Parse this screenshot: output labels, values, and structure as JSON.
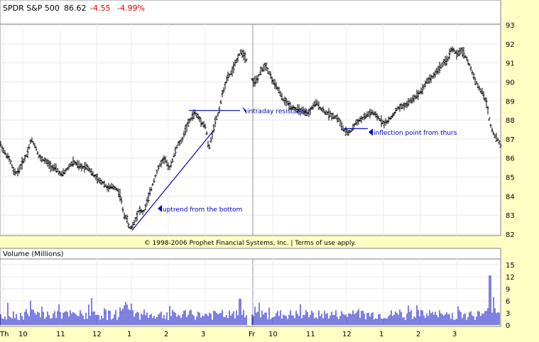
{
  "header": {
    "ticker": "SPDR S&P 500",
    "price": "86.62",
    "change": "-4.55",
    "change_pct": "-4.99%"
  },
  "copyright": "© 1998-2006 Prophet Financial Systems, Inc. | Terms of use apply.",
  "chart_data": [
    {
      "type": "line",
      "title": "SPDR S&P 500",
      "ylim": [
        82,
        93
      ],
      "yticks": [
        82,
        83,
        84,
        85,
        86,
        87,
        88,
        89,
        90,
        91,
        92,
        93
      ],
      "grid": true,
      "colors": {
        "bars": "#000000",
        "annotation": "#0000c0",
        "background": "#ffffff",
        "frame": "#ffffc4"
      },
      "x_tick_labels": [
        "Th",
        "10",
        "11",
        "12",
        "1",
        "2",
        "3",
        "Fr",
        "10",
        "11",
        "12",
        "1",
        "2",
        "3"
      ],
      "session_divider_after_label": "Fr",
      "series": [
        {
          "name": "",
          "style": "ohlc-bars",
          "anchors": [
            [
              0,
              86.8
            ],
            [
              6,
              86.3
            ],
            [
              14,
              85.9
            ],
            [
              20,
              85.2
            ],
            [
              26,
              85.3
            ],
            [
              32,
              85.8
            ],
            [
              38,
              86.2
            ],
            [
              44,
              87.0
            ],
            [
              50,
              86.6
            ],
            [
              56,
              86.0
            ],
            [
              62,
              85.9
            ],
            [
              68,
              85.7
            ],
            [
              74,
              85.5
            ],
            [
              80,
              85.4
            ],
            [
              86,
              85.1
            ],
            [
              92,
              85.3
            ],
            [
              98,
              85.6
            ],
            [
              104,
              85.8
            ],
            [
              110,
              85.6
            ],
            [
              116,
              85.5
            ],
            [
              122,
              85.6
            ],
            [
              128,
              85.3
            ],
            [
              134,
              85.0
            ],
            [
              140,
              84.8
            ],
            [
              146,
              84.7
            ],
            [
              152,
              84.4
            ],
            [
              158,
              84.5
            ],
            [
              164,
              84.4
            ],
            [
              170,
              84.0
            ],
            [
              174,
              83.0
            ],
            [
              178,
              82.9
            ],
            [
              182,
              82.3
            ],
            [
              186,
              82.4
            ],
            [
              190,
              82.7
            ],
            [
              196,
              83.3
            ],
            [
              202,
              83.1
            ],
            [
              208,
              83.8
            ],
            [
              214,
              84.5
            ],
            [
              220,
              85.2
            ],
            [
              226,
              85.7
            ],
            [
              232,
              86.0
            ],
            [
              238,
              85.4
            ],
            [
              244,
              86.0
            ],
            [
              250,
              86.7
            ],
            [
              256,
              86.9
            ],
            [
              262,
              87.6
            ],
            [
              268,
              88.0
            ],
            [
              274,
              88.4
            ],
            [
              280,
              88.1
            ],
            [
              286,
              87.8
            ],
            [
              290,
              87.6
            ],
            [
              294,
              86.4
            ],
            [
              298,
              87.1
            ],
            [
              302,
              87.8
            ],
            [
              308,
              88.4
            ],
            [
              314,
              89.5
            ],
            [
              320,
              90.2
            ],
            [
              326,
              90.5
            ],
            [
              332,
              91.0
            ],
            [
              336,
              91.4
            ],
            [
              340,
              91.6
            ],
            [
              346,
              91.3
            ],
            [
              356,
              90.0
            ],
            [
              362,
              90.1
            ],
            [
              368,
              90.6
            ],
            [
              374,
              90.9
            ],
            [
              380,
              90.4
            ],
            [
              386,
              89.9
            ],
            [
              392,
              89.6
            ],
            [
              398,
              89.1
            ],
            [
              404,
              88.9
            ],
            [
              410,
              88.7
            ],
            [
              416,
              88.6
            ],
            [
              422,
              88.5
            ],
            [
              428,
              88.4
            ],
            [
              434,
              88.3
            ],
            [
              440,
              88.7
            ],
            [
              446,
              88.9
            ],
            [
              452,
              88.6
            ],
            [
              458,
              88.4
            ],
            [
              464,
              88.3
            ],
            [
              470,
              88.2
            ],
            [
              476,
              88.1
            ],
            [
              482,
              87.6
            ],
            [
              488,
              87.3
            ],
            [
              494,
              87.4
            ],
            [
              500,
              87.8
            ],
            [
              506,
              88.0
            ],
            [
              512,
              88.1
            ],
            [
              518,
              88.3
            ],
            [
              524,
              88.4
            ],
            [
              530,
              88.2
            ],
            [
              536,
              88.0
            ],
            [
              542,
              87.8
            ],
            [
              548,
              88.0
            ],
            [
              554,
              88.3
            ],
            [
              560,
              88.6
            ],
            [
              566,
              88.7
            ],
            [
              572,
              88.8
            ],
            [
              578,
              89.0
            ],
            [
              584,
              89.2
            ],
            [
              590,
              89.4
            ],
            [
              596,
              89.7
            ],
            [
              602,
              90.1
            ],
            [
              608,
              90.2
            ],
            [
              614,
              90.5
            ],
            [
              620,
              90.8
            ],
            [
              626,
              91.0
            ],
            [
              632,
              91.3
            ],
            [
              636,
              91.8
            ],
            [
              640,
              91.6
            ],
            [
              644,
              91.4
            ],
            [
              650,
              91.7
            ],
            [
              656,
              91.3
            ],
            [
              662,
              90.8
            ],
            [
              668,
              90.2
            ],
            [
              674,
              89.7
            ],
            [
              680,
              89.4
            ],
            [
              686,
              88.8
            ],
            [
              690,
              87.8
            ],
            [
              696,
              87.2
            ],
            [
              702,
              86.9
            ],
            [
              706,
              86.6
            ]
          ]
        }
      ],
      "annotations": [
        {
          "text": "intraday resistance",
          "price": 88.5
        },
        {
          "text": "inflection point from thurs",
          "price": 87.1
        },
        {
          "text": "uptrend from the bottom",
          "price": 83.2
        }
      ]
    },
    {
      "type": "bar",
      "title": "Volume (Millions)",
      "ylim": [
        0,
        15
      ],
      "yticks": [
        0,
        3,
        6,
        9,
        12,
        15
      ],
      "grid": true,
      "colors": {
        "bars": "#0000c0"
      },
      "x_tick_labels": [
        "Th",
        "10",
        "11",
        "12",
        "1",
        "2",
        "3",
        "Fr",
        "10",
        "11",
        "12",
        "1",
        "2",
        "3"
      ],
      "notes": "Typical volume 1–4M per bar; spikes near 6M around 1:00 Thursday and near 12M at the end of Friday."
    }
  ]
}
